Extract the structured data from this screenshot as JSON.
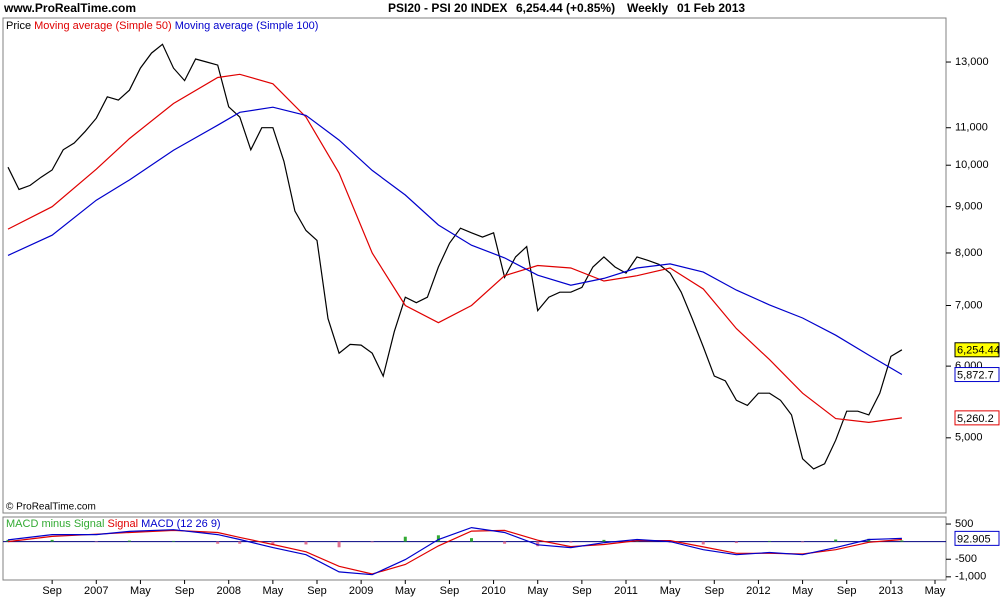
{
  "header": {
    "site": "www.ProRealTime.com",
    "title": "PSI20 - PSI 20 INDEX",
    "quote": "6,254.44 (+0.85%)",
    "period": "Weekly",
    "date": "01 Feb 2013"
  },
  "copyright": "© ProRealTime.com",
  "chart_data": [
    {
      "type": "line",
      "log_scale": true,
      "xlim": [
        "2006-05",
        "2013-05"
      ],
      "ylim": [
        4130,
        14540
      ],
      "yticks": [
        {
          "value": 13000,
          "label": "13,000"
        },
        {
          "value": 11000,
          "label": "11,000"
        },
        {
          "value": 10000,
          "label": "10,000"
        },
        {
          "value": 9000,
          "label": "9,000"
        },
        {
          "value": 8000,
          "label": "8,000"
        },
        {
          "value": 7000,
          "label": "7,000"
        },
        {
          "value": 6000,
          "label": "6,000"
        },
        {
          "value": 5000,
          "label": "5,000"
        }
      ],
      "x": [
        "2006-05",
        "2006-06",
        "2006-07",
        "2006-08",
        "2006-09",
        "2006-10",
        "2006-11",
        "2006-12",
        "2007-01",
        "2007-02",
        "2007-03",
        "2007-04",
        "2007-05",
        "2007-06",
        "2007-07",
        "2007-08",
        "2007-09",
        "2007-10",
        "2007-11",
        "2007-12",
        "2008-01",
        "2008-02",
        "2008-03",
        "2008-04",
        "2008-05",
        "2008-06",
        "2008-07",
        "2008-08",
        "2008-09",
        "2008-10",
        "2008-11",
        "2008-12",
        "2009-01",
        "2009-02",
        "2009-03",
        "2009-04",
        "2009-05",
        "2009-06",
        "2009-07",
        "2009-08",
        "2009-09",
        "2009-10",
        "2009-11",
        "2009-12",
        "2010-01",
        "2010-02",
        "2010-03",
        "2010-04",
        "2010-05",
        "2010-06",
        "2010-07",
        "2010-08",
        "2010-09",
        "2010-10",
        "2010-11",
        "2010-12",
        "2011-01",
        "2011-02",
        "2011-03",
        "2011-04",
        "2011-05",
        "2011-06",
        "2011-07",
        "2011-08",
        "2011-09",
        "2011-10",
        "2011-11",
        "2011-12",
        "2012-01",
        "2012-02",
        "2012-03",
        "2012-04",
        "2012-05",
        "2012-06",
        "2012-07",
        "2012-08",
        "2012-09",
        "2012-10",
        "2012-11",
        "2012-12",
        "2013-01",
        "2013-02"
      ],
      "series": [
        {
          "name": "Price",
          "color": "#000000",
          "last_label": "6,254.44",
          "label_fill": "#ffff00",
          "values": [
            9950,
            9400,
            9500,
            9700,
            9880,
            10400,
            10580,
            10900,
            11270,
            11900,
            11800,
            12100,
            12800,
            13300,
            13600,
            12800,
            12400,
            13100,
            13000,
            12900,
            11600,
            11300,
            10400,
            11000,
            11000,
            10100,
            8900,
            8470,
            8260,
            6770,
            6200,
            6340,
            6330,
            6200,
            5850,
            6550,
            7150,
            7050,
            7150,
            7720,
            8200,
            8520,
            8420,
            8330,
            8420,
            7520,
            7920,
            8130,
            6910,
            7150,
            7240,
            7240,
            7330,
            7720,
            7920,
            7720,
            7600,
            7920,
            7850,
            7770,
            7600,
            7240,
            6770,
            6300,
            5850,
            5780,
            5500,
            5430,
            5600,
            5600,
            5500,
            5300,
            4740,
            4620,
            4680,
            4970,
            5350,
            5350,
            5300,
            5600,
            6150,
            6254.44
          ]
        },
        {
          "name": "Moving average (Simple 50)",
          "color": "#e00000",
          "last_label": "5,260.2",
          "label_fill": "#ffffff",
          "x": [
            "2006-05",
            "2006-09",
            "2007-01",
            "2007-04",
            "2007-08",
            "2007-12",
            "2008-02",
            "2008-05",
            "2008-08",
            "2008-11",
            "2009-02",
            "2009-05",
            "2009-08",
            "2009-11",
            "2010-02",
            "2010-05",
            "2010-08",
            "2010-11",
            "2011-02",
            "2011-05",
            "2011-08",
            "2011-11",
            "2012-02",
            "2012-05",
            "2012-08",
            "2012-11",
            "2013-02"
          ],
          "values": [
            8500,
            9000,
            9900,
            10700,
            11700,
            12500,
            12600,
            12300,
            11300,
            9800,
            8000,
            7000,
            6700,
            7000,
            7550,
            7750,
            7700,
            7450,
            7550,
            7700,
            7300,
            6600,
            6100,
            5600,
            5250,
            5200,
            5260.2
          ]
        },
        {
          "name": "Moving average (Simple 100)",
          "color": "#0000cc",
          "last_label": "5,872.7",
          "label_fill": "#ffffff",
          "x": [
            "2006-05",
            "2006-09",
            "2007-01",
            "2007-04",
            "2007-08",
            "2007-12",
            "2008-02",
            "2008-05",
            "2008-08",
            "2008-11",
            "2009-02",
            "2009-05",
            "2009-08",
            "2009-11",
            "2010-02",
            "2010-05",
            "2010-08",
            "2010-11",
            "2011-02",
            "2011-05",
            "2011-08",
            "2011-11",
            "2012-02",
            "2012-05",
            "2012-08",
            "2012-11",
            "2013-02"
          ],
          "values": [
            7950,
            8370,
            9150,
            9630,
            10390,
            11070,
            11440,
            11590,
            11350,
            10660,
            9870,
            9270,
            8590,
            8160,
            7900,
            7560,
            7370,
            7500,
            7700,
            7780,
            7620,
            7280,
            7010,
            6780,
            6490,
            6170,
            5872.7
          ]
        }
      ]
    },
    {
      "type": "macd",
      "xlim": [
        "2006-05",
        "2013-05"
      ],
      "ylim": [
        -1090,
        700
      ],
      "yticks": [
        500,
        -500,
        {
          "value": -1000,
          "label": "-1,000"
        }
      ],
      "xticks": [
        {
          "value": "2006-09",
          "label": "Sep"
        },
        {
          "value": "2007-01",
          "label": "2007"
        },
        {
          "value": "2007-05",
          "label": "May"
        },
        {
          "value": "2007-09",
          "label": "Sep"
        },
        {
          "value": "2008-01",
          "label": "2008"
        },
        {
          "value": "2008-05",
          "label": "May"
        },
        {
          "value": "2008-09",
          "label": "Sep"
        },
        {
          "value": "2009-01",
          "label": "2009"
        },
        {
          "value": "2009-05",
          "label": "May"
        },
        {
          "value": "2009-09",
          "label": "Sep"
        },
        {
          "value": "2010-01",
          "label": "2010"
        },
        {
          "value": "2010-05",
          "label": "May"
        },
        {
          "value": "2010-09",
          "label": "Sep"
        },
        {
          "value": "2011-01",
          "label": "2011"
        },
        {
          "value": "2011-05",
          "label": "May"
        },
        {
          "value": "2011-09",
          "label": "Sep"
        },
        {
          "value": "2012-01",
          "label": "2012"
        },
        {
          "value": "2012-05",
          "label": "May"
        },
        {
          "value": "2012-09",
          "label": "Sep"
        },
        {
          "value": "2013-01",
          "label": "2013"
        },
        {
          "value": "2013-05",
          "label": "May"
        }
      ],
      "x": [
        "2006-05",
        "2006-09",
        "2007-01",
        "2007-04",
        "2007-08",
        "2007-12",
        "2008-02",
        "2008-05",
        "2008-08",
        "2008-11",
        "2009-02",
        "2009-05",
        "2009-08",
        "2009-11",
        "2010-02",
        "2010-05",
        "2010-08",
        "2010-11",
        "2011-02",
        "2011-05",
        "2011-08",
        "2011-11",
        "2012-02",
        "2012-05",
        "2012-08",
        "2012-11",
        "2013-02"
      ],
      "series": [
        {
          "name": "MACD minus Signal",
          "color": "#33aa33",
          "kind": "bar",
          "values": [
            50,
            50,
            -10,
            30,
            20,
            -60,
            -60,
            -90,
            -80,
            -160,
            -20,
            140,
            180,
            100,
            -60,
            -130,
            -30,
            50,
            30,
            -30,
            -80,
            -40,
            20,
            -20,
            60,
            80,
            33
          ]
        },
        {
          "name": "Signal",
          "color": "#e00000",
          "kind": "line",
          "values": [
            0,
            150,
            210,
            260,
            320,
            260,
            120,
            -80,
            -290,
            -700,
            -920,
            -650,
            -120,
            300,
            320,
            40,
            -140,
            -80,
            30,
            30,
            -150,
            -330,
            -330,
            -350,
            -230,
            -20,
            60
          ]
        },
        {
          "name": "MACD (12 26 9)",
          "color": "#0000cc",
          "kind": "line",
          "last_label": "92.905",
          "values": [
            50,
            200,
            200,
            290,
            340,
            200,
            60,
            -170,
            -370,
            -860,
            -940,
            -510,
            60,
            400,
            260,
            -90,
            -170,
            -30,
            60,
            0,
            -230,
            -370,
            -310,
            -370,
            -170,
            60,
            92.905
          ]
        }
      ]
    }
  ]
}
